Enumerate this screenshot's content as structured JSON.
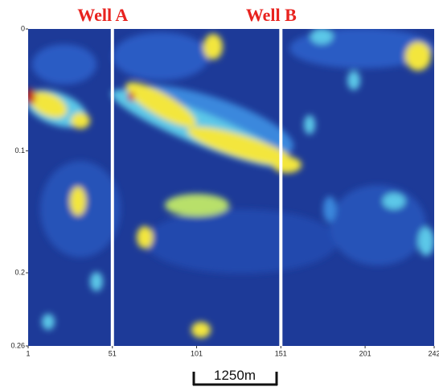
{
  "chart_data": {
    "type": "section",
    "annotations": [
      {
        "text": "Well A",
        "x": 51
      },
      {
        "text": "Well B",
        "x": 151
      }
    ],
    "xlim": [
      1,
      242
    ],
    "xticks": [
      1,
      51,
      101,
      151,
      201,
      242
    ],
    "ylim": [
      0,
      0.26
    ],
    "yticks": [
      0,
      0.1,
      0.2,
      0.26
    ],
    "scale_bar": "1250m"
  }
}
